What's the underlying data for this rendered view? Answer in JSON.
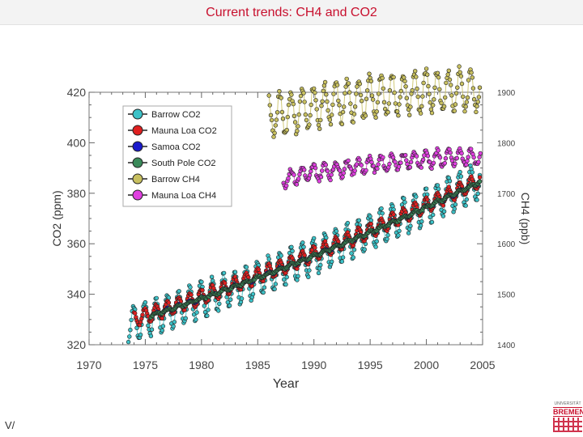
{
  "slide": {
    "title": "Current trends: CH4 and CO2",
    "footer_left": "V/",
    "logo_small": "UNIVERSITÄT",
    "logo_text": "BREMEN"
  },
  "chart_data": {
    "type": "scatter",
    "title": "Current trends: CH4 and CO2",
    "xlabel": "Year",
    "ylabel": "CO2 (ppm)",
    "y2label": "CH4 (ppb)",
    "xlim": [
      1970,
      2005
    ],
    "ylim": [
      320,
      420
    ],
    "y2lim": [
      1400,
      1900
    ],
    "xticks": [
      1970,
      1975,
      1980,
      1985,
      1990,
      1995,
      2000,
      2005
    ],
    "yticks": [
      320,
      340,
      360,
      380,
      400,
      420
    ],
    "y2ticks": [
      1400,
      1500,
      1600,
      1700,
      1800,
      1900
    ],
    "legend_position": "top-left",
    "series": [
      {
        "name": "Barrow CO2",
        "color": "#3cc2c8",
        "axis": "left",
        "start": 1973.5,
        "end": 2004.8,
        "trend": [
          330.0,
          1.5,
          0.012
        ],
        "amp": 7.0,
        "noise": 0.8
      },
      {
        "name": "Mauna Loa CO2",
        "color": "#e02020",
        "axis": "left",
        "start": 1974.0,
        "end": 2004.8,
        "trend": [
          331.5,
          1.45,
          0.012
        ],
        "amp": 3.0,
        "noise": 0.4
      },
      {
        "name": "Samoa CO2",
        "color": "#1a1acc",
        "axis": "left",
        "start": 1976.0,
        "end": 2004.8,
        "trend": [
          330.8,
          1.45,
          0.012
        ],
        "amp": 0.6,
        "noise": 0.3
      },
      {
        "name": "South Pole CO2",
        "color": "#3a8a5a",
        "axis": "left",
        "start": 1975.5,
        "end": 2004.8,
        "trend": [
          330.8,
          1.45,
          0.012
        ],
        "amp": 0.5,
        "noise": 0.3
      },
      {
        "name": "Barrow CH4",
        "color": "#c8c060",
        "axis": "right",
        "start": 1986.0,
        "end": 2004.8,
        "trend": [
          1770,
          9.0,
          -0.15
        ],
        "amp": 40,
        "noise": 8
      },
      {
        "name": "Mauna Loa CH4",
        "color": "#e040e0",
        "axis": "right",
        "start": 1987.3,
        "end": 2004.8,
        "trend": [
          1655,
          7.5,
          -0.12
        ],
        "amp": 15,
        "noise": 5
      }
    ]
  }
}
